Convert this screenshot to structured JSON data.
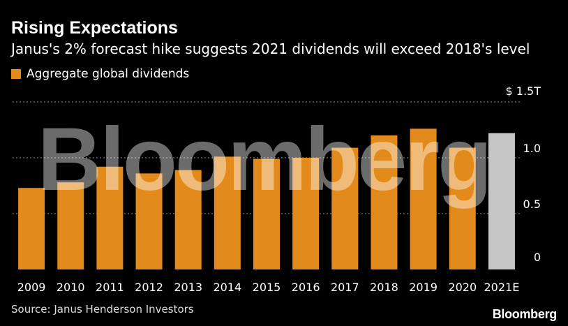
{
  "colors": {
    "background": "#000000",
    "bar": "#e28a1c",
    "bar_estimate": "#c6c6c6",
    "grid": "#9a9a9a"
  },
  "brand": "Bloomberg",
  "chart_data": {
    "type": "bar",
    "title": "Rising Expectations",
    "subtitle": "Janus's 2% forecast hike suggests 2021 dividends will exceed 2018's level",
    "legend": [
      "Aggregate global dividends"
    ],
    "categories": [
      "2009",
      "2010",
      "2011",
      "2012",
      "2013",
      "2014",
      "2015",
      "2016",
      "2017",
      "2018",
      "2019",
      "2020",
      "2021E"
    ],
    "values": [
      0.73,
      0.78,
      0.92,
      0.86,
      0.89,
      1.01,
      0.99,
      1.0,
      1.09,
      1.2,
      1.26,
      1.09,
      1.22
    ],
    "estimate_categories": [
      "2021E"
    ],
    "ylim": [
      0,
      1.5
    ],
    "yticks": [
      0,
      0.5,
      1.0,
      1.5
    ],
    "ytick_labels": [
      "0",
      "0.5",
      "1.0",
      "$ 1.5T"
    ],
    "xlabel": "",
    "ylabel": "",
    "grid": true,
    "legend_position": "top-left"
  },
  "source": "Source: Janus Henderson Investors"
}
